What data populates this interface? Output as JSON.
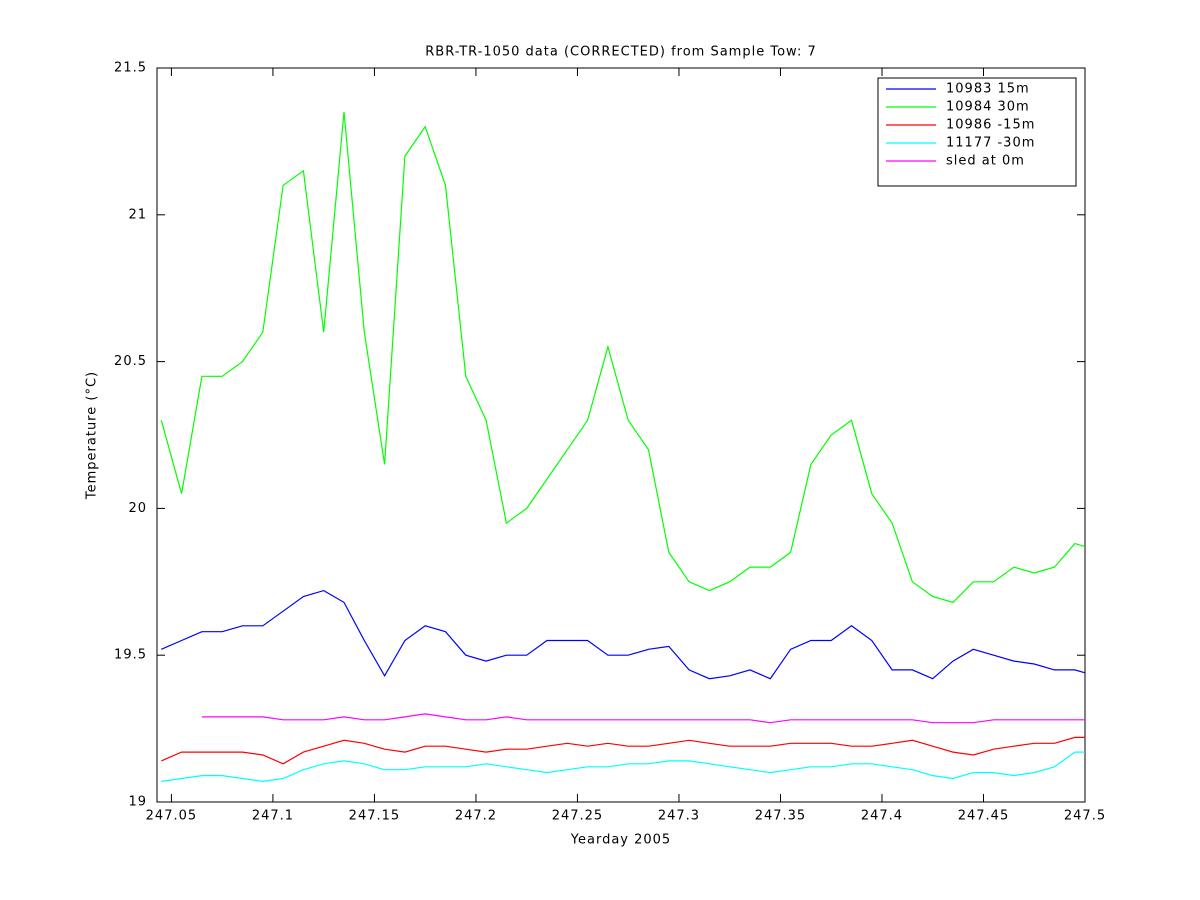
{
  "chart_data": {
    "type": "line",
    "title": "RBR-TR-1050 data (CORRECTED) from Sample Tow: 7",
    "x_label": "Yearday 2005",
    "y_label": "Temperature (°C)",
    "x": [
      247.045,
      247.055,
      247.065,
      247.075,
      247.085,
      247.095,
      247.105,
      247.115,
      247.125,
      247.135,
      247.145,
      247.155,
      247.165,
      247.175,
      247.185,
      247.195,
      247.205,
      247.215,
      247.225,
      247.235,
      247.245,
      247.255,
      247.265,
      247.275,
      247.285,
      247.295,
      247.305,
      247.315,
      247.325,
      247.335,
      247.345,
      247.355,
      247.365,
      247.375,
      247.385,
      247.395,
      247.405,
      247.415,
      247.425,
      247.435,
      247.445,
      247.455,
      247.465,
      247.475,
      247.485,
      247.495,
      247.5
    ],
    "series": [
      {
        "name": "10983 15m",
        "color": "#0000ff",
        "values": [
          19.52,
          19.55,
          19.58,
          19.58,
          19.6,
          19.6,
          19.65,
          19.7,
          19.72,
          19.68,
          19.55,
          19.43,
          19.55,
          19.6,
          19.58,
          19.5,
          19.48,
          19.5,
          19.5,
          19.55,
          19.55,
          19.55,
          19.5,
          19.5,
          19.52,
          19.53,
          19.45,
          19.42,
          19.43,
          19.45,
          19.42,
          19.52,
          19.55,
          19.55,
          19.6,
          19.55,
          19.45,
          19.45,
          19.42,
          19.48,
          19.52,
          19.5,
          19.48,
          19.47,
          19.45,
          19.45,
          19.44
        ]
      },
      {
        "name": "10984 30m",
        "color": "#00ff00",
        "values": [
          20.3,
          20.05,
          20.45,
          20.45,
          20.5,
          20.6,
          21.1,
          21.15,
          20.6,
          21.35,
          20.6,
          20.15,
          21.2,
          21.3,
          21.1,
          20.45,
          20.3,
          19.95,
          20.0,
          20.1,
          20.2,
          20.3,
          20.55,
          20.3,
          20.2,
          19.85,
          19.75,
          19.72,
          19.75,
          19.8,
          19.8,
          19.85,
          20.15,
          20.25,
          20.3,
          20.05,
          19.95,
          19.75,
          19.7,
          19.68,
          19.75,
          19.75,
          19.8,
          19.78,
          19.8,
          19.88,
          19.87
        ]
      },
      {
        "name": "10986 -15m",
        "color": "#ff0000",
        "values": [
          19.14,
          19.17,
          19.17,
          19.17,
          19.17,
          19.16,
          19.13,
          19.17,
          19.19,
          19.21,
          19.2,
          19.18,
          19.17,
          19.19,
          19.19,
          19.18,
          19.17,
          19.18,
          19.18,
          19.19,
          19.2,
          19.19,
          19.2,
          19.19,
          19.19,
          19.2,
          19.21,
          19.2,
          19.19,
          19.19,
          19.19,
          19.2,
          19.2,
          19.2,
          19.19,
          19.19,
          19.2,
          19.21,
          19.19,
          19.17,
          19.16,
          19.18,
          19.19,
          19.2,
          19.2,
          19.22,
          19.22
        ]
      },
      {
        "name": "11177 -30m",
        "color": "#00ffff",
        "values": [
          19.07,
          19.08,
          19.09,
          19.09,
          19.08,
          19.07,
          19.08,
          19.11,
          19.13,
          19.14,
          19.13,
          19.11,
          19.11,
          19.12,
          19.12,
          19.12,
          19.13,
          19.12,
          19.11,
          19.1,
          19.11,
          19.12,
          19.12,
          19.13,
          19.13,
          19.14,
          19.14,
          19.13,
          19.12,
          19.11,
          19.1,
          19.11,
          19.12,
          19.12,
          19.13,
          19.13,
          19.12,
          19.11,
          19.09,
          19.08,
          19.1,
          19.1,
          19.09,
          19.1,
          19.12,
          19.17,
          19.17
        ]
      },
      {
        "name": "sled at 0m",
        "color": "#ff00ff",
        "values": [
          null,
          null,
          19.29,
          19.29,
          19.29,
          19.29,
          19.28,
          19.28,
          19.28,
          19.29,
          19.28,
          19.28,
          19.29,
          19.3,
          19.29,
          19.28,
          19.28,
          19.29,
          19.28,
          19.28,
          19.28,
          19.28,
          19.28,
          19.28,
          19.28,
          19.28,
          19.28,
          19.28,
          19.28,
          19.28,
          19.27,
          19.28,
          19.28,
          19.28,
          19.28,
          19.28,
          19.28,
          19.28,
          19.27,
          19.27,
          19.27,
          19.28,
          19.28,
          19.28,
          19.28,
          19.28,
          19.28
        ]
      }
    ],
    "xlim": [
      247.0429,
      247.5
    ],
    "ylim": [
      19,
      21.5
    ],
    "xticks": [
      247.05,
      247.1,
      247.15,
      247.2,
      247.25,
      247.3,
      247.35,
      247.4,
      247.45,
      247.5
    ],
    "yticks": [
      19,
      19.5,
      20,
      20.5,
      21,
      21.5
    ],
    "legend": "top-right"
  }
}
